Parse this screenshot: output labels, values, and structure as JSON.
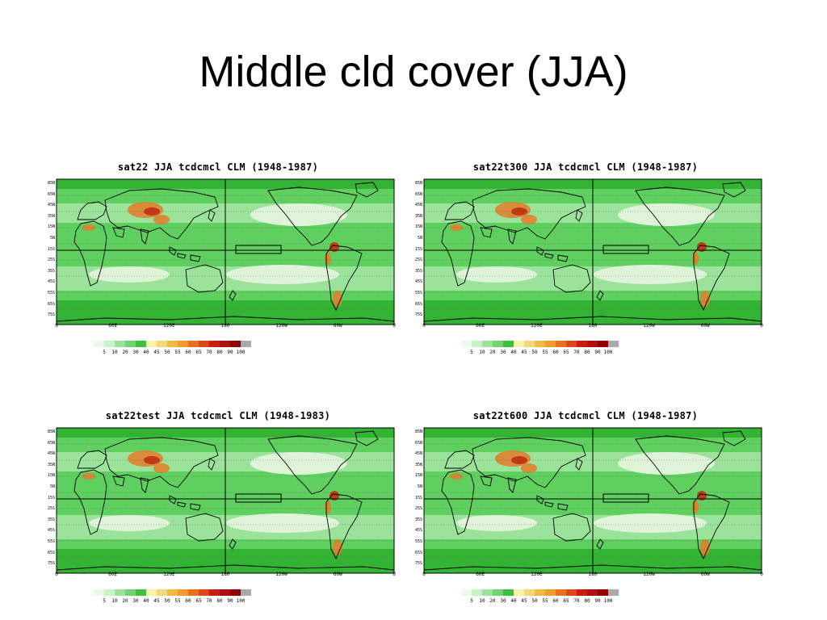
{
  "slide": {
    "title": "Middle cld cover (JJA)"
  },
  "colors": {
    "ocean_light": "#dff3d9",
    "green_light": "#9be39a",
    "green_mid": "#5fd05f",
    "green_dark": "#34b234",
    "land_high": "#e08030",
    "land_red": "#c03010",
    "coast": "#000000"
  },
  "colorbar": {
    "colors": [
      "#eafbea",
      "#c8f2c8",
      "#9be39a",
      "#6fd46f",
      "#3fbf3f",
      "#f8f3a8",
      "#f0d878",
      "#f0b840",
      "#f09a30",
      "#e87020",
      "#d84818",
      "#c82010",
      "#b01010",
      "#900000",
      "#aaaaaa"
    ],
    "labels": [
      "5",
      "10",
      "20",
      "30",
      "40",
      "45",
      "50",
      "55",
      "60",
      "65",
      "70",
      "80",
      "90",
      "100"
    ]
  },
  "axes": {
    "lat_labels": [
      "85N",
      "65N",
      "45N",
      "35N",
      "15N",
      "5N",
      "15S",
      "25S",
      "35S",
      "45S",
      "55S",
      "65S",
      "75S"
    ],
    "lon_labels": [
      "0",
      "60E",
      "120E",
      "180",
      "120W",
      "60W",
      "0"
    ]
  },
  "panels": [
    {
      "title": "sat22 JJA tcdcmcl CLM (1948-1987)"
    },
    {
      "title": "sat22t300 JJA tcdcmcl CLM (1948-1987)"
    },
    {
      "title": "sat22test JJA tcdcmcl CLM (1948-1983)"
    },
    {
      "title": "sat22t600 JJA tcdcmcl CLM (1948-1987)"
    }
  ]
}
